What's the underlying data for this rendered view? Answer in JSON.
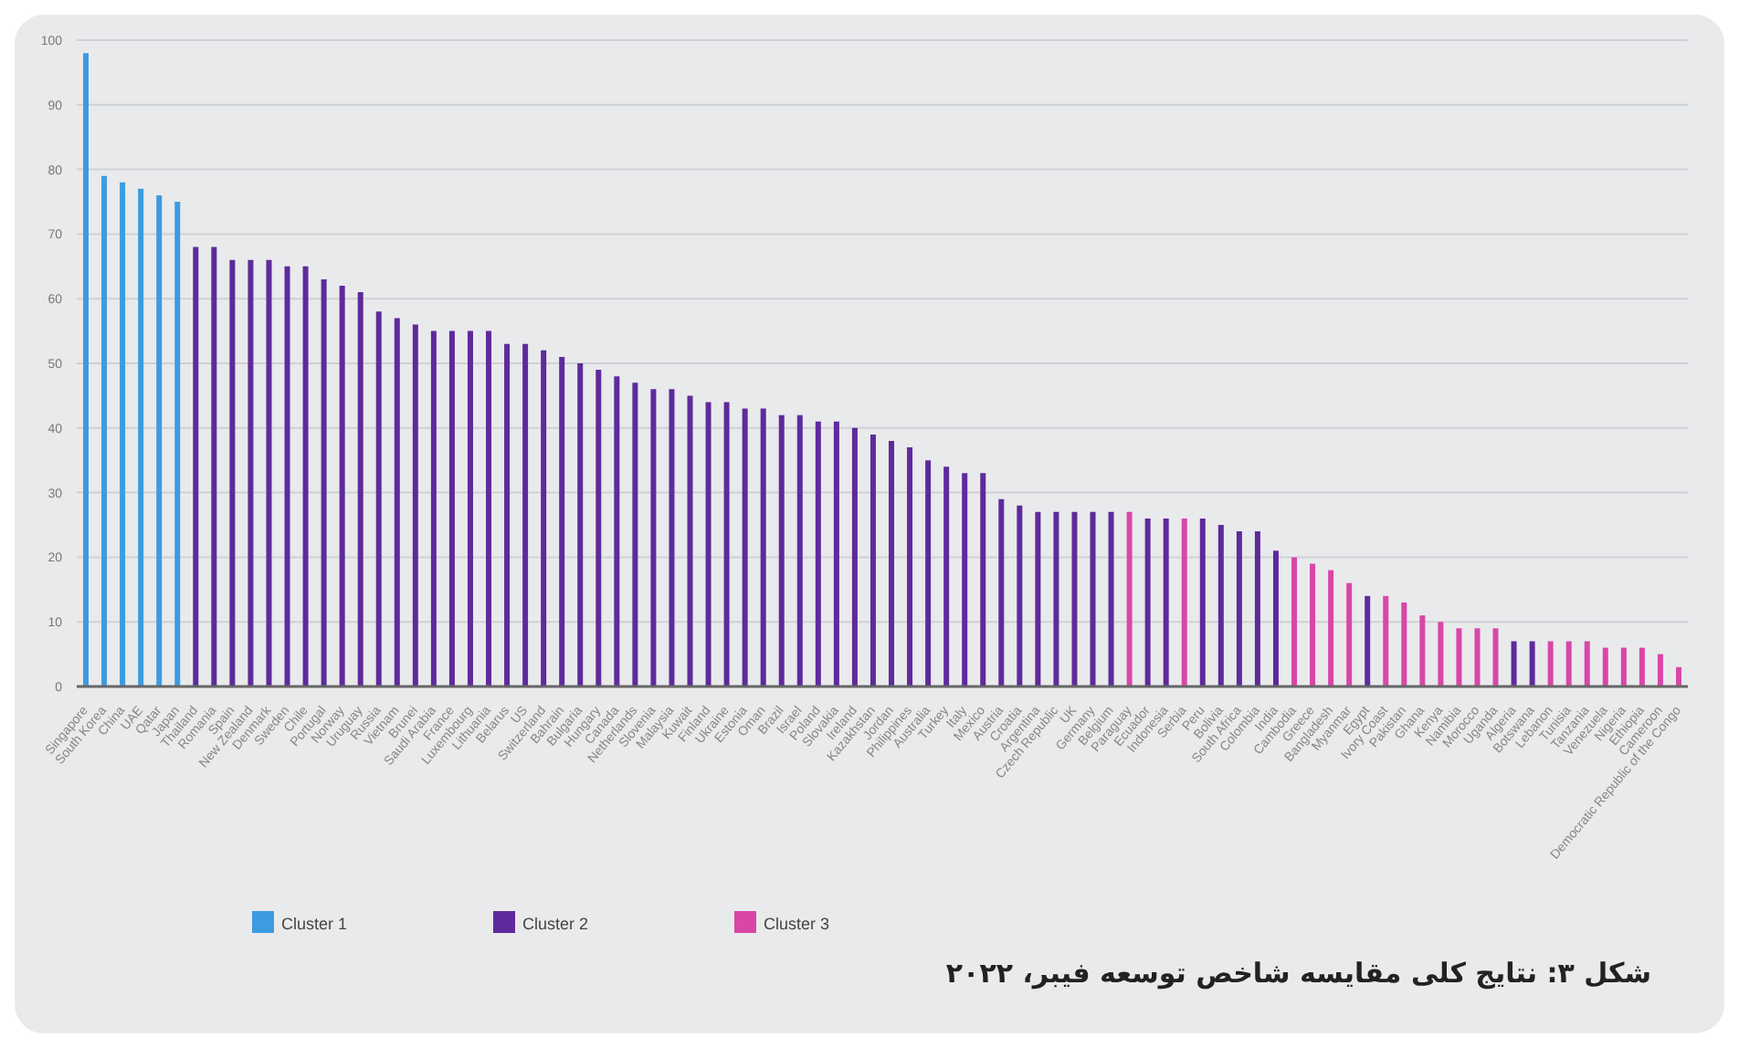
{
  "chart_data": {
    "type": "bar",
    "stacked": true,
    "categories": [
      "Singapore",
      "South Korea",
      "China",
      "UAE",
      "Qatar",
      "Japan",
      "Thailand",
      "Romania",
      "Spain",
      "New Zealand",
      "Denmark",
      "Sweden",
      "Chile",
      "Portugal",
      "Norway",
      "Uruguay",
      "Russia",
      "Vietnam",
      "Brunei",
      "Saudi Arabia",
      "France",
      "Luxembourg",
      "Lithuania",
      "Belarus",
      "US",
      "Switzerland",
      "Bahrain",
      "Bulgaria",
      "Hungary",
      "Canada",
      "Netherlands",
      "Slovenia",
      "Malaysia",
      "Kuwait",
      "Finland",
      "Ukraine",
      "Estonia",
      "Oman",
      "Brazil",
      "Israel",
      "Poland",
      "Slovakia",
      "Ireland",
      "Kazakhstan",
      "Jordan",
      "Philippines",
      "Australia",
      "Turkey",
      "Italy",
      "Mexico",
      "Austria",
      "Croatia",
      "Argentina",
      "Czech Republic",
      "UK",
      "Germany",
      "Belgium",
      "Paraguay",
      "Ecuador",
      "Indonesia",
      "Serbia",
      "Peru",
      "Bolivia",
      "South Africa",
      "Colombia",
      "India",
      "Cambodia",
      "Greece",
      "Bangladesh",
      "Myanmar",
      "Egypt",
      "Ivory Coast",
      "Pakistan",
      "Ghana",
      "Kenya",
      "Namibia",
      "Morocco",
      "Uganda",
      "Algeria",
      "Botswana",
      "Lebanon",
      "Tunisia",
      "Tanzania",
      "Venezuela",
      "Nigeria",
      "Ethiopia",
      "Cameroon",
      "Democratic Republic of the Congo"
    ],
    "series": [
      {
        "name": "Cluster 1",
        "color": "#3d9be0",
        "values": [
          98,
          79,
          78,
          77,
          76,
          75,
          null,
          null,
          null,
          null,
          null,
          null,
          null,
          null,
          null,
          null,
          null,
          null,
          null,
          null,
          null,
          null,
          null,
          null,
          null,
          null,
          null,
          null,
          null,
          null,
          null,
          null,
          null,
          null,
          null,
          null,
          null,
          null,
          null,
          null,
          null,
          null,
          null,
          null,
          null,
          null,
          null,
          null,
          null,
          null,
          null,
          null,
          null,
          null,
          null,
          null,
          null,
          null,
          null,
          null,
          null,
          null,
          null,
          null,
          null,
          null,
          null,
          null,
          null,
          null,
          null,
          null,
          null,
          null,
          null,
          null,
          null,
          null,
          null,
          null,
          null,
          null,
          null,
          null,
          null,
          null,
          null,
          null
        ]
      },
      {
        "name": "Cluster 2",
        "color": "#5e2a9c",
        "values": [
          null,
          null,
          null,
          null,
          null,
          null,
          68,
          68,
          66,
          66,
          66,
          65,
          65,
          63,
          62,
          61,
          58,
          57,
          56,
          55,
          55,
          55,
          55,
          53,
          53,
          52,
          51,
          50,
          49,
          48,
          47,
          46,
          46,
          45,
          44,
          44,
          43,
          43,
          42,
          42,
          41,
          41,
          40,
          39,
          38,
          37,
          35,
          34,
          33,
          33,
          29,
          28,
          27,
          27,
          27,
          27,
          27,
          null,
          26,
          26,
          null,
          26,
          25,
          24,
          24,
          21,
          null,
          null,
          null,
          null,
          14,
          null,
          null,
          null,
          null,
          null,
          null,
          null,
          7,
          7,
          null,
          null,
          null,
          null,
          null,
          null,
          null,
          null
        ]
      },
      {
        "name": "Cluster 3",
        "color": "#d946a8",
        "values": [
          null,
          null,
          null,
          null,
          null,
          null,
          null,
          null,
          null,
          null,
          null,
          null,
          null,
          null,
          null,
          null,
          null,
          null,
          null,
          null,
          null,
          null,
          null,
          null,
          null,
          null,
          null,
          null,
          null,
          null,
          null,
          null,
          null,
          null,
          null,
          null,
          null,
          null,
          null,
          null,
          null,
          null,
          null,
          null,
          null,
          null,
          null,
          null,
          null,
          null,
          null,
          null,
          null,
          null,
          null,
          null,
          null,
          27,
          null,
          null,
          26,
          null,
          null,
          null,
          null,
          null,
          20,
          19,
          18,
          16,
          null,
          14,
          13,
          11,
          10,
          9,
          9,
          9,
          null,
          null,
          7,
          7,
          7,
          6,
          6,
          6,
          5,
          3
        ]
      }
    ],
    "ylim": [
      0,
      100
    ],
    "yticks": [
      0,
      10,
      20,
      30,
      40,
      50,
      60,
      70,
      80,
      90,
      100
    ],
    "grid": "y",
    "legend": "bottom left",
    "annotations": [
      "شکل ۳: نتایج کلی مقایسه شاخص توسعه فیبر، ۲۰۲۲"
    ]
  }
}
